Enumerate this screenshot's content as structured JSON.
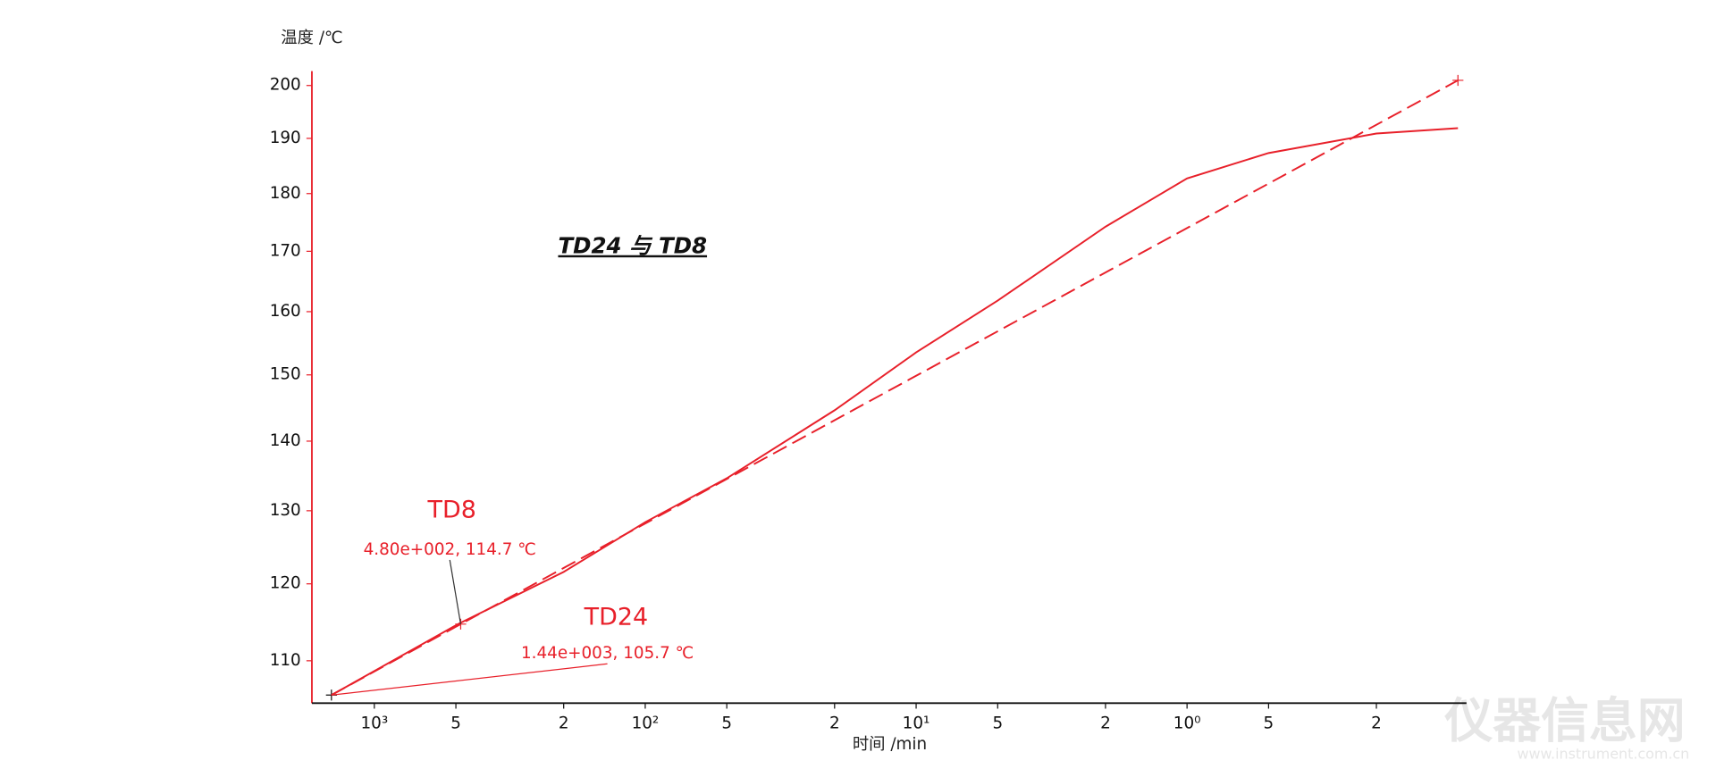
{
  "chart_data": {
    "type": "line",
    "title": "TD24 与 TD8",
    "y_label": "温度 /℃",
    "x_label": "时间 /min",
    "x_scale": "log",
    "x_reversed": true,
    "y_scale": "reciprocal-absolute",
    "xlim": [
      1700,
      0.093
    ],
    "xticks": [
      {
        "value": 1000,
        "label": "10³"
      },
      {
        "value": 500,
        "label": "5"
      },
      {
        "value": 200,
        "label": "2"
      },
      {
        "value": 100,
        "label": "10²"
      },
      {
        "value": 50,
        "label": "5"
      },
      {
        "value": 20,
        "label": "2"
      },
      {
        "value": 10,
        "label": "10¹"
      },
      {
        "value": 5,
        "label": "5"
      },
      {
        "value": 2,
        "label": "2"
      },
      {
        "value": 1,
        "label": "10⁰"
      },
      {
        "value": 0.5,
        "label": "5"
      },
      {
        "value": 0.2,
        "label": "2"
      }
    ],
    "ylim": [
      104.7,
      202.8
    ],
    "yticks": [
      110,
      120,
      130,
      140,
      150,
      160,
      170,
      180,
      190,
      200
    ],
    "series": [
      {
        "name": "TD8",
        "color": "#e8202a",
        "dashed": true,
        "markers": true,
        "x": [
          1440,
          480,
          0.1
        ],
        "values": [
          105.7,
          114.7,
          201.0
        ]
      },
      {
        "name": "TD24",
        "color": "#e8202a",
        "dashed": false,
        "markers": false,
        "x": [
          1440,
          485,
          200,
          100,
          50,
          20,
          10,
          5,
          2,
          1,
          0.5,
          0.2,
          0.1
        ],
        "values": [
          105.7,
          114.8,
          121.6,
          128.4,
          134.6,
          144.6,
          153.5,
          161.8,
          174.2,
          182.7,
          187.3,
          190.9,
          191.9
        ]
      }
    ],
    "annotations": [
      {
        "text": "TD8"
      },
      {
        "text": "4.80e+002, 114.7 ℃"
      },
      {
        "text": "TD24"
      },
      {
        "text": "1.44e+003, 105.7 ℃"
      }
    ],
    "watermark": {
      "text": "仪器信息网",
      "url": "www.instrument.com.cn"
    }
  }
}
